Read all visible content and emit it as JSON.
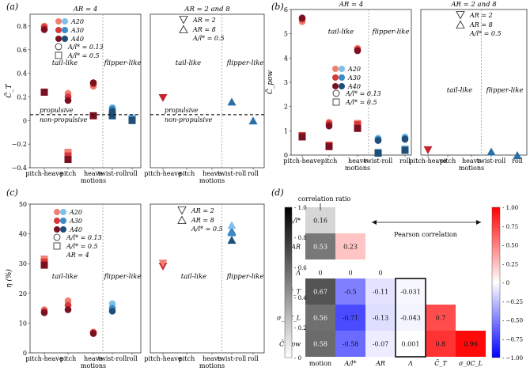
{
  "figure": {
    "panel_labels": [
      "(a)",
      "(b)",
      "(c)",
      "(d)"
    ]
  },
  "legend": {
    "series_names": [
      "A20",
      "A30",
      "A40"
    ],
    "amp_low": "A/l* = 0.13",
    "amp_high": "A/l* = 0.5",
    "ar2": "AR = 2",
    "ar8": "AR = 8",
    "ar4": "AR = 4",
    "amp_half": "A/l* = 0.5"
  },
  "colors": {
    "A20_red": "#f08070",
    "A30_red": "#d9383a",
    "A40_red": "#7a1020",
    "A20_blue": "#7fc0ea",
    "A30_blue": "#3a8cc8",
    "A40_blue": "#1f4e79",
    "ar_red": "#c0262d",
    "ar_blue": "#2b6ea6"
  },
  "annotations": {
    "tail_like": "tail-like",
    "flipper_like": "flipper-like",
    "propulsive": "propulsive",
    "non_propulsive": "non-propulsive",
    "correlation_ratio": "correlation ratio",
    "pearson_correlation": "Pearson correlation"
  },
  "chart_data": [
    {
      "id": "a-left",
      "type": "scatter",
      "panel": "(a)",
      "title": "AR = 4",
      "ylabel": "C̄_T",
      "ylim": [
        -0.4,
        0.9
      ],
      "yticks": [
        "−0.4",
        "−0.2",
        "0",
        "0.2",
        "0.4",
        "0.6",
        "0.8"
      ],
      "categories": [
        "pitch-heave",
        "pitch",
        "heave motions",
        "twist-roll",
        "roll"
      ],
      "threshold": 0.05,
      "series": [
        {
          "name": "A20",
          "circle_values": [
            0.8,
            0.23,
            0.29,
            0.11,
            null
          ],
          "square_values": [
            0.24,
            -0.27,
            null,
            0.07,
            0.02
          ]
        },
        {
          "name": "A30",
          "circle_values": [
            0.79,
            0.2,
            0.31,
            0.1,
            null
          ],
          "square_values": [
            0.24,
            -0.3,
            null,
            0.05,
            0.01
          ]
        },
        {
          "name": "A40",
          "circle_values": [
            0.77,
            0.17,
            0.32,
            0.08,
            null
          ],
          "square_values": [
            0.24,
            -0.33,
            0.04,
            0.04,
            0.0
          ]
        }
      ]
    },
    {
      "id": "a-right",
      "type": "scatter",
      "panel": "(a)",
      "title": "AR = 2 and 8",
      "categories": [
        "pitch-heave",
        "pitch",
        "heave motions",
        "twist-roll",
        "roll"
      ],
      "ar2_values": [
        0.19,
        null,
        null,
        null,
        null
      ],
      "ar8_values": [
        null,
        null,
        null,
        0.16,
        0.0
      ]
    },
    {
      "id": "b-left",
      "type": "scatter",
      "panel": "(b)",
      "title": "AR = 4",
      "ylabel": "C̄_pow",
      "ylim": [
        0,
        6
      ],
      "yticks": [
        "0",
        "1",
        "2",
        "3",
        "4",
        "5",
        "6"
      ],
      "categories": [
        "pitch-heave",
        "pitch",
        "heave motions",
        "twist-roll",
        "roll"
      ],
      "series": [
        {
          "name": "A20",
          "circle_values": [
            5.5,
            1.35,
            4.4,
            0.7,
            0.75
          ],
          "square_values": [
            0.8,
            0.4,
            1.3,
            0.1,
            0.25
          ]
        },
        {
          "name": "A30",
          "circle_values": [
            5.6,
            1.3,
            4.35,
            0.65,
            0.7
          ],
          "square_values": [
            0.8,
            0.4,
            1.25,
            0.1,
            0.2
          ]
        },
        {
          "name": "A40",
          "circle_values": [
            5.65,
            1.2,
            4.3,
            0.6,
            0.65
          ],
          "square_values": [
            0.75,
            0.35,
            1.1,
            0.08,
            0.2
          ]
        }
      ]
    },
    {
      "id": "b-right",
      "type": "scatter",
      "panel": "(b)",
      "title": "AR = 2 and 8",
      "categories": [
        "pitch-heave",
        "pitch",
        "heave motions",
        "twist-roll",
        "roll"
      ],
      "ar2_values": [
        0.2,
        null,
        null,
        null,
        null
      ],
      "ar8_values": [
        null,
        null,
        null,
        0.15,
        0.0
      ]
    },
    {
      "id": "c-left",
      "type": "scatter",
      "panel": "(c)",
      "ylabel": "η (%)",
      "ylim": [
        0,
        50
      ],
      "yticks": [
        "0",
        "10",
        "20",
        "30",
        "40",
        "50"
      ],
      "categories": [
        "pitch-heave",
        "pitch",
        "heave motions",
        "twist-roll",
        "roll"
      ],
      "series": [
        {
          "name": "A20",
          "circle_values": [
            14.5,
            17.5,
            7.0,
            16.5,
            null
          ],
          "square_values": [
            31.5,
            null,
            null,
            null,
            null
          ]
        },
        {
          "name": "A30",
          "circle_values": [
            14.0,
            16.0,
            6.8,
            15.0,
            null
          ],
          "square_values": [
            30.5,
            null,
            null,
            null,
            null
          ]
        },
        {
          "name": "A40",
          "circle_values": [
            13.5,
            14.5,
            6.5,
            14.0,
            null
          ],
          "square_values": [
            29.5,
            null,
            null,
            null,
            null
          ]
        }
      ]
    },
    {
      "id": "c-right",
      "type": "scatter",
      "panel": "(c)",
      "categories": [
        "pitch-heave",
        "pitch",
        "heave motions",
        "twist-roll",
        "roll"
      ],
      "ar2_values": [
        29.0,
        null,
        null,
        null,
        null
      ],
      "ar8_values": [
        null,
        null,
        null,
        41.0,
        null
      ]
    },
    {
      "id": "d",
      "type": "heatmap",
      "panel": "(d)",
      "columns": [
        "motion",
        "A/l*",
        "AR",
        "Λ",
        "C̄_T",
        "σ_0C_L"
      ],
      "upper_rows": [
        {
          "label": "A/l*",
          "cells": [
            0.16,
            null,
            null,
            null,
            null,
            null
          ]
        },
        {
          "label": "AR",
          "cells": [
            0.53,
            0.23,
            null,
            null,
            null,
            null
          ]
        },
        {
          "label": "Λ",
          "cells": [
            0,
            0,
            0,
            null,
            null,
            null
          ]
        }
      ],
      "lower_rows": [
        {
          "label": "C̄_T",
          "cells": [
            0.67,
            -0.5,
            -0.11,
            -0.031,
            null,
            null
          ]
        },
        {
          "label": "σ_0C_L",
          "cells": [
            0.56,
            -0.71,
            -0.13,
            -0.043,
            0.7,
            null
          ]
        },
        {
          "label": "C̄_pow",
          "cells": [
            0.58,
            -0.58,
            -0.07,
            0.001,
            0.8,
            0.96
          ]
        }
      ],
      "gray_colorbar": {
        "range": [
          0,
          1
        ],
        "ticks": [
          "1.0",
          "0.8",
          "0.6",
          "0.4",
          "0.2",
          "0"
        ]
      },
      "red_blue_colorbar": {
        "range": [
          -1,
          1
        ],
        "ticks": [
          "1.00",
          "0.75",
          "0.50",
          "0.25",
          "0",
          "−0.25",
          "−0.50",
          "−0.75",
          "−1.00"
        ]
      }
    }
  ]
}
